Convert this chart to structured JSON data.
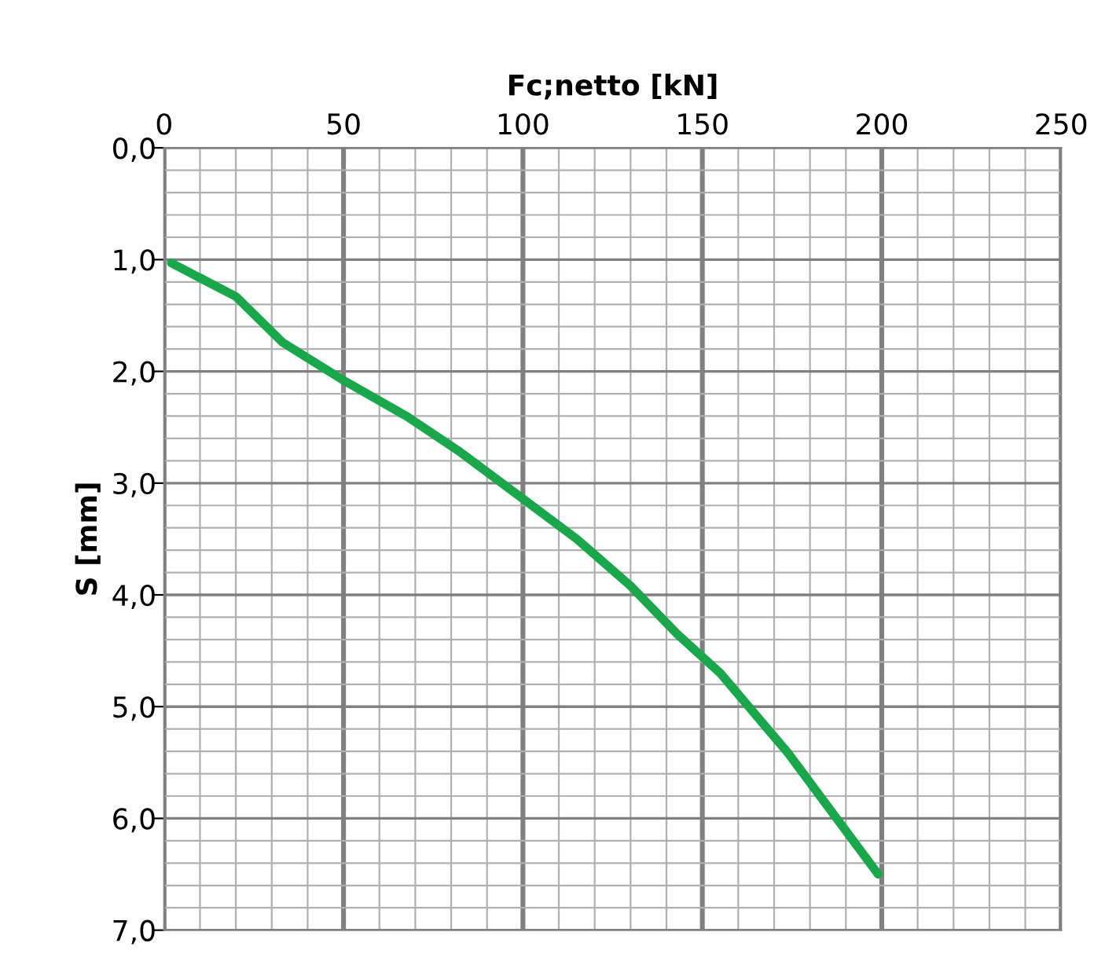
{
  "chart_data": {
    "type": "line",
    "xlabel": "Fc;netto [kN]",
    "ylabel": "S [mm]",
    "x": [
      2,
      20,
      33,
      50,
      67.5,
      82,
      100,
      115,
      130,
      143,
      155,
      174,
      199
    ],
    "series": [
      {
        "color": "#1aa64a",
        "values": [
          1.03,
          1.33,
          1.74,
          2.08,
          2.4,
          2.71,
          3.14,
          3.5,
          3.92,
          4.35,
          4.7,
          5.42,
          6.5
        ]
      }
    ],
    "xlim": [
      0,
      250
    ],
    "xticks": [
      0,
      {
        "value": 10,
        "label": null
      },
      {
        "value": 20,
        "label": null
      },
      {
        "value": 30,
        "label": null
      },
      {
        "value": 40,
        "label": null
      },
      50,
      {
        "value": 60,
        "label": null
      },
      {
        "value": 70,
        "label": null
      },
      {
        "value": 80,
        "label": null
      },
      {
        "value": 90,
        "label": null
      },
      100,
      {
        "value": 110,
        "label": null
      },
      {
        "value": 120,
        "label": null
      },
      {
        "value": 130,
        "label": null
      },
      {
        "value": 140,
        "label": null
      },
      150,
      {
        "value": 160,
        "label": null
      },
      {
        "value": 170,
        "label": null
      },
      {
        "value": 180,
        "label": null
      },
      {
        "value": 190,
        "label": null
      },
      200,
      {
        "value": 210,
        "label": null
      },
      {
        "value": 220,
        "label": null
      },
      {
        "value": 230,
        "label": null
      },
      {
        "value": 240,
        "label": null
      },
      250
    ],
    "ylim": [
      7,
      0
    ],
    "yticks": [
      {
        "value": 0,
        "label": "0,0"
      },
      {
        "value": 0.2,
        "label": null
      },
      {
        "value": 0.4,
        "label": null
      },
      {
        "value": 0.6,
        "label": null
      },
      {
        "value": 0.8,
        "label": null
      },
      {
        "value": 1,
        "label": "1,0"
      },
      {
        "value": 1.2,
        "label": null
      },
      {
        "value": 1.4,
        "label": null
      },
      {
        "value": 1.6,
        "label": null
      },
      {
        "value": 1.8,
        "label": null
      },
      {
        "value": 2,
        "label": "2,0"
      },
      {
        "value": 2.2,
        "label": null
      },
      {
        "value": 2.4,
        "label": null
      },
      {
        "value": 2.6,
        "label": null
      },
      {
        "value": 2.8,
        "label": null
      },
      {
        "value": 3,
        "label": "3,0"
      },
      {
        "value": 3.2,
        "label": null
      },
      {
        "value": 3.4,
        "label": null
      },
      {
        "value": 3.6,
        "label": null
      },
      {
        "value": 3.8,
        "label": null
      },
      {
        "value": 4,
        "label": "4,0"
      },
      {
        "value": 4.2,
        "label": null
      },
      {
        "value": 4.4,
        "label": null
      },
      {
        "value": 4.6,
        "label": null
      },
      {
        "value": 4.8,
        "label": null
      },
      {
        "value": 5,
        "label": "5,0"
      },
      {
        "value": 5.2,
        "label": null
      },
      {
        "value": 5.4,
        "label": null
      },
      {
        "value": 5.6,
        "label": null
      },
      {
        "value": 5.8,
        "label": null
      },
      {
        "value": 6,
        "label": "6,0"
      },
      {
        "value": 6.2,
        "label": null
      },
      {
        "value": 6.4,
        "label": null
      },
      {
        "value": 6.6,
        "label": null
      },
      {
        "value": 6.8,
        "label": null
      },
      {
        "value": 7,
        "label": "7,0"
      }
    ],
    "grid": true,
    "marker": "none",
    "line_style": "solid"
  }
}
